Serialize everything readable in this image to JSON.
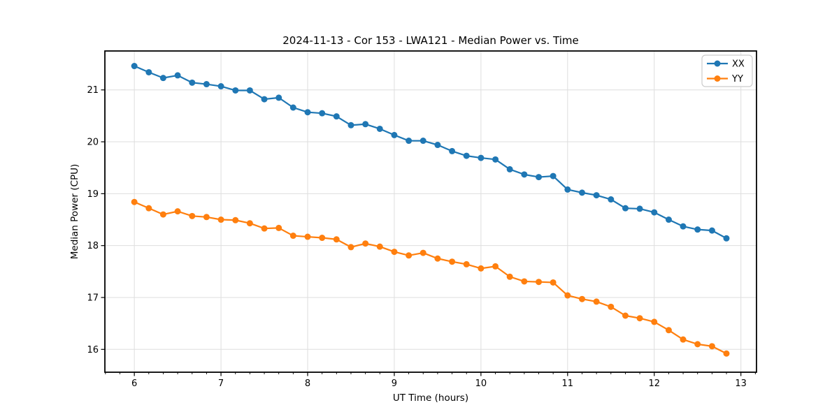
{
  "chart_data": {
    "type": "line",
    "title": "2024-11-13 - Cor 153 - LWA121 - Median Power vs. Time",
    "xlabel": "UT Time (hours)",
    "ylabel": "Median Power (CPU)",
    "xlim": [
      5.66,
      13.18
    ],
    "ylim": [
      15.56,
      21.75
    ],
    "xticks": [
      6,
      7,
      8,
      9,
      10,
      11,
      12,
      13
    ],
    "yticks": [
      16,
      17,
      18,
      19,
      20,
      21
    ],
    "x_minor_step": 0.1667,
    "grid": "on",
    "legend_position": "upper right",
    "marker": "circle",
    "grid_color": "#dedede",
    "x": [
      6.0,
      6.167,
      6.333,
      6.5,
      6.667,
      6.833,
      7.0,
      7.167,
      7.333,
      7.5,
      7.667,
      7.833,
      8.0,
      8.167,
      8.333,
      8.5,
      8.667,
      8.833,
      9.0,
      9.167,
      9.333,
      9.5,
      9.667,
      9.833,
      10.0,
      10.167,
      10.333,
      10.5,
      10.667,
      10.833,
      11.0,
      11.167,
      11.333,
      11.5,
      11.667,
      11.833,
      12.0,
      12.167,
      12.333,
      12.5,
      12.667,
      12.833
    ],
    "series": [
      {
        "name": "XX",
        "color": "#1f77b4",
        "values": [
          21.46,
          21.34,
          21.23,
          21.28,
          21.14,
          21.11,
          21.07,
          20.99,
          20.99,
          20.82,
          20.85,
          20.66,
          20.57,
          20.55,
          20.49,
          20.32,
          20.34,
          20.25,
          20.13,
          20.02,
          20.02,
          19.94,
          19.82,
          19.73,
          19.69,
          19.66,
          19.47,
          19.37,
          19.32,
          19.34,
          19.08,
          19.02,
          18.97,
          18.89,
          18.72,
          18.71,
          18.64,
          18.5,
          18.37,
          18.31,
          18.29,
          18.14
        ]
      },
      {
        "name": "YY",
        "color": "#ff7f0e",
        "values": [
          18.84,
          18.72,
          18.6,
          18.66,
          18.57,
          18.55,
          18.5,
          18.49,
          18.43,
          18.33,
          18.34,
          18.19,
          18.17,
          18.15,
          18.12,
          17.97,
          18.04,
          17.98,
          17.88,
          17.81,
          17.86,
          17.75,
          17.69,
          17.64,
          17.56,
          17.6,
          17.4,
          17.31,
          17.3,
          17.29,
          17.04,
          16.97,
          16.92,
          16.82,
          16.65,
          16.6,
          16.53,
          16.37,
          16.19,
          16.1,
          16.06,
          15.92
        ]
      }
    ]
  }
}
